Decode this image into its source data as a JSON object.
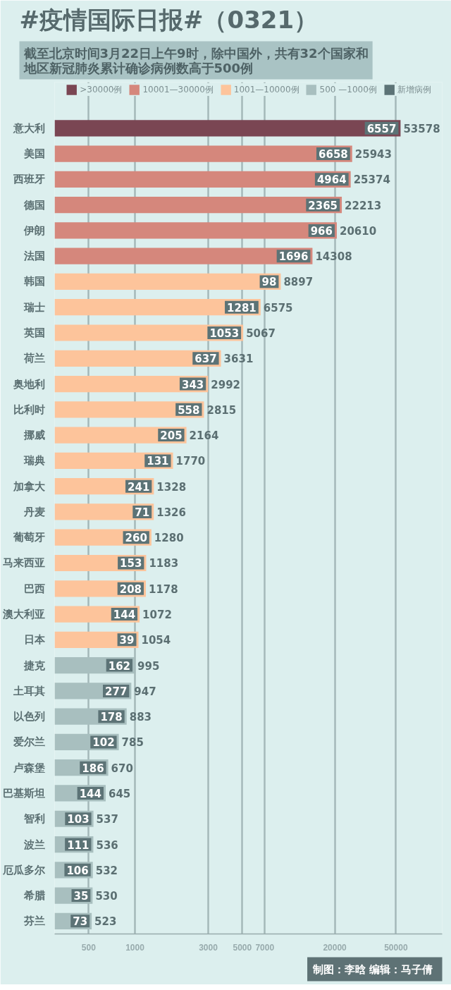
{
  "chart_data": {
    "type": "bar",
    "orientation": "horizontal",
    "stacked": true,
    "title": "#疫情国际日报#（0321）",
    "subtitle": "截至北京时间3月22日上午9时，除中国外，共有32个国家和地区新冠肺炎累计确诊病例数高于500例",
    "categories": [
      "意大利",
      "美国",
      "西班牙",
      "德国",
      "伊朗",
      "法国",
      "韩国",
      "瑞士",
      "英国",
      "荷兰",
      "奥地利",
      "比利时",
      "挪威",
      "瑞典",
      "加拿大",
      "丹麦",
      "葡萄牙",
      "马来西亚",
      "巴西",
      "澳大利亚",
      "日本",
      "捷克",
      "土耳其",
      "以色列",
      "爱尔兰",
      "卢森堡",
      "巴基斯坦",
      "智利",
      "波兰",
      "厄瓜多尔",
      "希腊",
      "芬兰"
    ],
    "series": [
      {
        "name": ">30000例",
        "color": "#7a4653",
        "values": [
          53578,
          null,
          null,
          null,
          null,
          null,
          null,
          null,
          null,
          null,
          null,
          null,
          null,
          null,
          null,
          null,
          null,
          null,
          null,
          null,
          null,
          null,
          null,
          null,
          null,
          null,
          null,
          null,
          null,
          null,
          null,
          null
        ]
      },
      {
        "name": "10001—30000例",
        "color": "#d5877c",
        "values": [
          null,
          25943,
          25374,
          22213,
          20610,
          14308,
          null,
          null,
          null,
          null,
          null,
          null,
          null,
          null,
          null,
          null,
          null,
          null,
          null,
          null,
          null,
          null,
          null,
          null,
          null,
          null,
          null,
          null,
          null,
          null,
          null,
          null
        ]
      },
      {
        "name": "1001—10000例",
        "color": "#fdc49b",
        "values": [
          null,
          null,
          null,
          null,
          null,
          null,
          8897,
          6575,
          5067,
          3631,
          2992,
          2815,
          2164,
          1770,
          1328,
          1326,
          1280,
          1183,
          1178,
          1072,
          1054,
          null,
          null,
          null,
          null,
          null,
          null,
          null,
          null,
          null,
          null,
          null
        ]
      },
      {
        "name": "500 —1000例",
        "color": "#a8bfbf",
        "values": [
          null,
          null,
          null,
          null,
          null,
          null,
          null,
          null,
          null,
          null,
          null,
          null,
          null,
          null,
          null,
          null,
          null,
          null,
          null,
          null,
          null,
          995,
          947,
          883,
          785,
          670,
          645,
          537,
          536,
          532,
          530,
          523
        ]
      },
      {
        "name": "新增病例",
        "type": "other",
        "color": "#5c7376",
        "values": [
          null,
          null,
          null,
          null,
          null,
          null,
          null,
          null,
          null,
          null,
          null,
          null,
          null,
          null,
          null,
          null,
          null,
          null,
          null,
          null,
          null,
          null,
          null,
          null,
          null,
          null,
          null,
          null,
          null,
          null,
          null,
          null
        ]
      }
    ],
    "xlim": [
      300,
      100000
    ],
    "xticks": [
      500,
      1000,
      3000,
      5000,
      7000,
      20000,
      50000
    ],
    "log": "x",
    "grid": "x",
    "legend": "top",
    "data_labels": true,
    "annotations": [
      {
        "text": "6557",
        "x": 53578,
        "y": "意大利"
      },
      {
        "text": "6658",
        "x": 25943,
        "y": "美国"
      },
      {
        "text": "4964",
        "x": 25374,
        "y": "西班牙"
      },
      {
        "text": "2365",
        "x": 22213,
        "y": "德国"
      },
      {
        "text": "966",
        "x": 20610,
        "y": "伊朗"
      },
      {
        "text": "1696",
        "x": 14308,
        "y": "法国"
      },
      {
        "text": "98",
        "x": 8897,
        "y": "韩国"
      },
      {
        "text": "1281",
        "x": 6575,
        "y": "瑞士"
      },
      {
        "text": "1053",
        "x": 5067,
        "y": "英国"
      },
      {
        "text": "637",
        "x": 3631,
        "y": "荷兰"
      },
      {
        "text": "343",
        "x": 2992,
        "y": "奥地利"
      },
      {
        "text": "558",
        "x": 2815,
        "y": "比利时"
      },
      {
        "text": "205",
        "x": 2164,
        "y": "挪威"
      },
      {
        "text": "131",
        "x": 1770,
        "y": "瑞典"
      },
      {
        "text": "241",
        "x": 1328,
        "y": "加拿大"
      },
      {
        "text": "71",
        "x": 1326,
        "y": "丹麦"
      },
      {
        "text": "260",
        "x": 1280,
        "y": "葡萄牙"
      },
      {
        "text": "153",
        "x": 1183,
        "y": "马来西亚"
      },
      {
        "text": "208",
        "x": 1178,
        "y": "巴西"
      },
      {
        "text": "144",
        "x": 1072,
        "y": "澳大利亚"
      },
      {
        "text": "39",
        "x": 1054,
        "y": "日本"
      },
      {
        "text": "162",
        "x": 995,
        "y": "捷克"
      },
      {
        "text": "277",
        "x": 947,
        "y": "土耳其"
      },
      {
        "text": "178",
        "x": 883,
        "y": "以色列"
      },
      {
        "text": "102",
        "x": 785,
        "y": "爱尔兰"
      },
      {
        "text": "186",
        "x": 670,
        "y": "卢森堡"
      },
      {
        "text": "144",
        "x": 645,
        "y": "巴基斯坦"
      },
      {
        "text": "103",
        "x": 537,
        "y": "智利"
      },
      {
        "text": "111",
        "x": 536,
        "y": "波兰"
      },
      {
        "text": "106",
        "x": 532,
        "y": "厄瓜多尔"
      },
      {
        "text": "35",
        "x": 530,
        "y": "希腊"
      },
      {
        "text": "73",
        "x": 523,
        "y": "芬兰"
      },
      "制图：李晗  编辑：马子倩"
    ]
  }
}
